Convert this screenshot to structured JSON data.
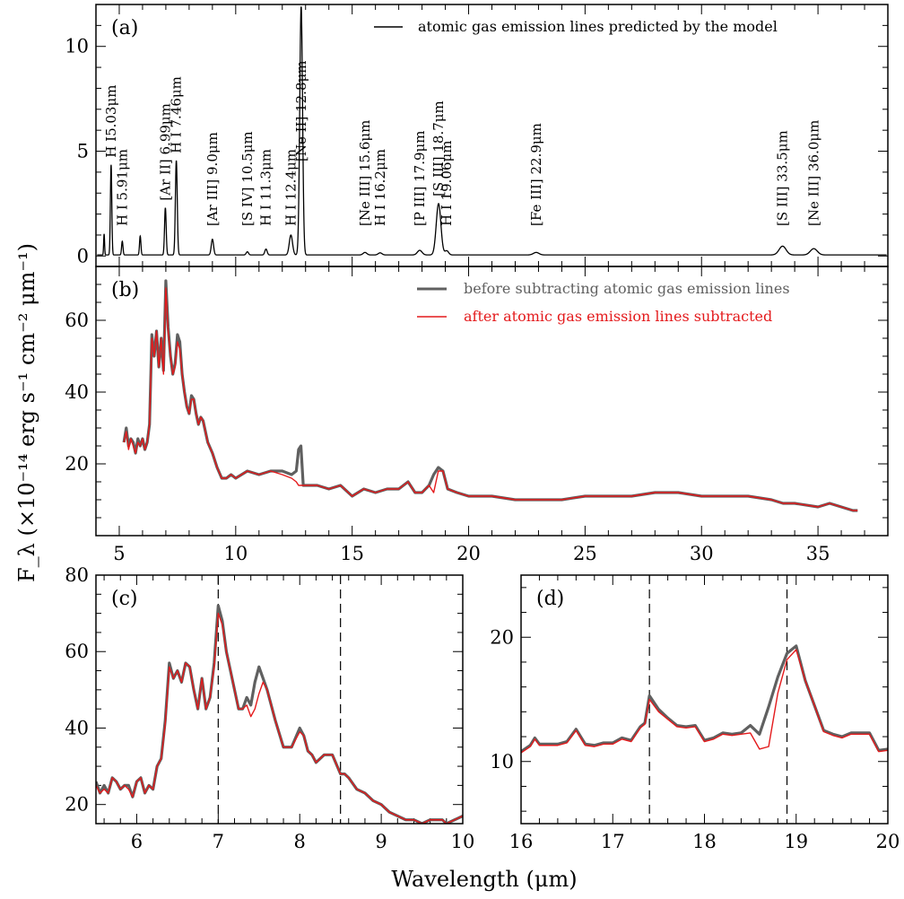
{
  "figure": {
    "ylabel": "F_λ (×10⁻¹⁴ erg s⁻¹ cm⁻² μm⁻¹)",
    "xlabel": "Wavelength (μm)"
  },
  "colors": {
    "before": "#606060",
    "after": "#e41a1c",
    "model": "#000000"
  },
  "chart_data": [
    {
      "id": "a",
      "panel_label": "(a)",
      "type": "line",
      "xlim": [
        4,
        38
      ],
      "ylim": [
        -0.5,
        12
      ],
      "x_ticks": [
        5,
        10,
        15,
        20,
        25,
        30,
        35
      ],
      "y_ticks": [
        0,
        5,
        10
      ],
      "legend": [
        {
          "label": "atomic gas emission lines predicted by the model",
          "color": "#000000"
        }
      ],
      "legend_position": "top-right",
      "baseline": 0.05,
      "lines": [
        {
          "x": 4.35,
          "h": 1.0,
          "w": 0.02
        },
        {
          "x": 4.65,
          "h": 4.3,
          "w": 0.03,
          "label": "H I5.03μm"
        },
        {
          "x": 5.13,
          "h": 0.65,
          "w": 0.03,
          "label": "H I 5.91μm"
        },
        {
          "x": 5.9,
          "h": 0.9,
          "w": 0.03
        },
        {
          "x": 6.98,
          "h": 2.25,
          "w": 0.035,
          "label": "[Ar II] 6.99μm"
        },
        {
          "x": 7.45,
          "h": 4.5,
          "w": 0.04,
          "label": "H I 7.46μm"
        },
        {
          "x": 9.0,
          "h": 0.75,
          "w": 0.05,
          "label": "[Ar III] 9.0μm"
        },
        {
          "x": 10.5,
          "h": 0.15,
          "w": 0.05,
          "label": "[S IV] 10.5μm"
        },
        {
          "x": 11.3,
          "h": 0.28,
          "w": 0.05,
          "label": "H I 11.3μm"
        },
        {
          "x": 12.37,
          "h": 0.95,
          "w": 0.07,
          "label": "H I 12.4μm"
        },
        {
          "x": 12.81,
          "h": 11.85,
          "w": 0.06,
          "label": "[Ne II] 12.8μm"
        },
        {
          "x": 15.55,
          "h": 0.12,
          "w": 0.08,
          "label": "[Ne III] 15.6μm"
        },
        {
          "x": 16.2,
          "h": 0.1,
          "w": 0.08,
          "label": "H I 16.2μm"
        },
        {
          "x": 17.9,
          "h": 0.22,
          "w": 0.1,
          "label": "[P III] 17.9μm"
        },
        {
          "x": 18.71,
          "h": 2.45,
          "w": 0.1,
          "label": "[S III] 18.7μm"
        },
        {
          "x": 19.06,
          "h": 0.2,
          "w": 0.08,
          "label": "H I 19.06μm"
        },
        {
          "x": 22.9,
          "h": 0.12,
          "w": 0.12,
          "label": "[Fe III] 22.9μm"
        },
        {
          "x": 33.48,
          "h": 0.42,
          "w": 0.15,
          "label": "[S III] 33.5μm"
        },
        {
          "x": 34.82,
          "h": 0.3,
          "w": 0.15,
          "label": "[Ne III] 36.0μm"
        }
      ]
    },
    {
      "id": "b",
      "panel_label": "(b)",
      "type": "line",
      "xlim": [
        4,
        38
      ],
      "ylim": [
        0,
        75
      ],
      "x_ticks": [
        5,
        10,
        15,
        20,
        25,
        30,
        35
      ],
      "y_ticks": [
        20,
        40,
        60
      ],
      "legend": [
        {
          "label": "before subtracting atomic gas emission lines",
          "color": "#606060"
        },
        {
          "label": "after atomic gas emission lines subtracted",
          "color": "#e41a1c"
        }
      ],
      "legend_position": "top-right",
      "series": [
        {
          "name": "before subtracting atomic gas emission lines",
          "x": [
            5.2,
            5.3,
            5.4,
            5.5,
            5.6,
            5.7,
            5.8,
            5.9,
            6.0,
            6.1,
            6.2,
            6.3,
            6.4,
            6.5,
            6.6,
            6.7,
            6.8,
            6.9,
            7.0,
            7.1,
            7.2,
            7.3,
            7.4,
            7.5,
            7.6,
            7.7,
            7.8,
            7.9,
            8.0,
            8.1,
            8.2,
            8.3,
            8.4,
            8.5,
            8.6,
            8.8,
            9.0,
            9.2,
            9.4,
            9.6,
            9.8,
            10.0,
            10.5,
            11.0,
            11.5,
            12.0,
            12.4,
            12.6,
            12.7,
            12.8,
            12.9,
            13.0,
            13.5,
            14.0,
            14.5,
            15.0,
            15.5,
            16.0,
            16.5,
            17.0,
            17.4,
            17.7,
            18.0,
            18.3,
            18.5,
            18.7,
            18.9,
            19.1,
            19.5,
            20.0,
            21,
            22,
            23,
            24,
            25,
            26,
            27,
            28,
            29,
            30,
            31,
            32,
            33,
            33.5,
            34,
            35,
            35.5,
            36,
            36.5,
            36.7
          ],
          "y": [
            26,
            30,
            25,
            27,
            26,
            23,
            27,
            25,
            27,
            24,
            26,
            31,
            56,
            50,
            57,
            47,
            55,
            46,
            71,
            58,
            50,
            45,
            48,
            56,
            54,
            45,
            40,
            36,
            34,
            39,
            38,
            34,
            31,
            33,
            32,
            26,
            23,
            19,
            16,
            16,
            17,
            16,
            18,
            17,
            18,
            18,
            17,
            18,
            24,
            25,
            14,
            14,
            14,
            13,
            14,
            11,
            13,
            12,
            13,
            13,
            15,
            12,
            12,
            14,
            17,
            19,
            18,
            13,
            12,
            11,
            11,
            10,
            10,
            10,
            11,
            11,
            11,
            12,
            12,
            11,
            11,
            11,
            10,
            9,
            9,
            8,
            9,
            8,
            7,
            7
          ]
        },
        {
          "name": "after atomic gas emission lines subtracted",
          "x": [
            5.2,
            5.3,
            5.4,
            5.5,
            5.6,
            5.7,
            5.8,
            5.9,
            6.0,
            6.1,
            6.2,
            6.3,
            6.4,
            6.5,
            6.6,
            6.7,
            6.8,
            6.9,
            7.0,
            7.1,
            7.2,
            7.3,
            7.4,
            7.5,
            7.6,
            7.7,
            7.8,
            7.9,
            8.0,
            8.1,
            8.2,
            8.3,
            8.4,
            8.5,
            8.6,
            8.8,
            9.0,
            9.2,
            9.4,
            9.6,
            9.8,
            10.0,
            10.5,
            11.0,
            11.5,
            12.0,
            12.4,
            12.6,
            12.7,
            12.8,
            12.9,
            13.0,
            13.5,
            14.0,
            14.5,
            15.0,
            15.5,
            16.0,
            16.5,
            17.0,
            17.4,
            17.7,
            18.0,
            18.3,
            18.5,
            18.7,
            18.9,
            19.1,
            19.5,
            20.0,
            21,
            22,
            23,
            24,
            25,
            26,
            27,
            28,
            29,
            30,
            31,
            32,
            33,
            33.5,
            34,
            35,
            35.5,
            36,
            36.5,
            36.7
          ],
          "y": [
            26,
            29,
            24,
            27,
            25,
            23,
            26,
            25,
            27,
            24,
            26,
            31,
            55,
            50,
            57,
            47,
            55,
            45,
            69,
            57,
            50,
            45,
            47,
            54,
            52,
            45,
            40,
            36,
            34,
            38,
            38,
            34,
            31,
            33,
            32,
            26,
            23,
            19,
            16,
            16,
            17,
            16,
            18,
            17,
            18,
            17,
            16,
            15,
            14,
            14,
            14,
            14,
            14,
            13,
            14,
            11,
            13,
            12,
            13,
            13,
            15,
            12,
            12,
            14,
            12,
            18,
            18,
            13,
            12,
            11,
            11,
            10,
            10,
            10,
            11,
            11,
            11,
            12,
            12,
            11,
            11,
            11,
            10,
            9,
            9,
            8,
            9,
            8,
            7,
            7
          ]
        }
      ]
    },
    {
      "id": "c",
      "panel_label": "(c)",
      "type": "line",
      "xlim": [
        5.5,
        10
      ],
      "ylim": [
        15,
        80
      ],
      "x_ticks": [
        6,
        7,
        8,
        9,
        10
      ],
      "y_ticks": [
        20,
        40,
        60,
        80
      ],
      "vlines": [
        7.0,
        8.5
      ],
      "series": [
        {
          "name": "before subtracting atomic gas emission lines",
          "x": [
            5.5,
            5.55,
            5.6,
            5.65,
            5.7,
            5.75,
            5.8,
            5.85,
            5.9,
            5.95,
            6.0,
            6.05,
            6.1,
            6.15,
            6.2,
            6.25,
            6.3,
            6.35,
            6.4,
            6.45,
            6.5,
            6.55,
            6.6,
            6.65,
            6.7,
            6.75,
            6.8,
            6.85,
            6.9,
            6.95,
            7.0,
            7.05,
            7.1,
            7.15,
            7.2,
            7.25,
            7.3,
            7.35,
            7.4,
            7.45,
            7.5,
            7.55,
            7.6,
            7.7,
            7.8,
            7.9,
            8.0,
            8.05,
            8.1,
            8.15,
            8.2,
            8.3,
            8.4,
            8.5,
            8.55,
            8.6,
            8.7,
            8.8,
            8.9,
            9.0,
            9.1,
            9.2,
            9.3,
            9.4,
            9.5,
            9.6,
            9.7,
            9.75,
            9.8,
            9.9,
            10.0
          ],
          "y": [
            26,
            23,
            25,
            23,
            27,
            26,
            24,
            25,
            25,
            22,
            26,
            27,
            23,
            25,
            24,
            30,
            32,
            42,
            57,
            53,
            55,
            52,
            57,
            56,
            50,
            45,
            53,
            45,
            48,
            57,
            72,
            68,
            60,
            55,
            50,
            45,
            45,
            48,
            46,
            52,
            56,
            53,
            50,
            42,
            35,
            35,
            40,
            38,
            34,
            33,
            31,
            33,
            33,
            28,
            28,
            27,
            24,
            23,
            21,
            20,
            18,
            17,
            16,
            16,
            15,
            16,
            16,
            16,
            15,
            16,
            17
          ]
        },
        {
          "name": "after atomic gas emission lines subtracted",
          "x": [
            5.5,
            5.55,
            5.6,
            5.65,
            5.7,
            5.75,
            5.8,
            5.85,
            5.9,
            5.95,
            6.0,
            6.05,
            6.1,
            6.15,
            6.2,
            6.25,
            6.3,
            6.35,
            6.4,
            6.45,
            6.5,
            6.55,
            6.6,
            6.65,
            6.7,
            6.75,
            6.8,
            6.85,
            6.9,
            6.95,
            7.0,
            7.05,
            7.1,
            7.15,
            7.2,
            7.25,
            7.3,
            7.35,
            7.4,
            7.45,
            7.5,
            7.55,
            7.6,
            7.7,
            7.8,
            7.9,
            8.0,
            8.05,
            8.1,
            8.15,
            8.2,
            8.3,
            8.4,
            8.5,
            8.55,
            8.6,
            8.7,
            8.8,
            8.9,
            9.0,
            9.1,
            9.2,
            9.3,
            9.4,
            9.5,
            9.6,
            9.7,
            9.75,
            9.8,
            9.9,
            10.0
          ],
          "y": [
            25,
            23,
            24,
            23,
            27,
            26,
            24,
            25,
            24,
            22,
            26,
            27,
            23,
            25,
            24,
            30,
            32,
            41,
            56,
            53,
            55,
            52,
            57,
            56,
            50,
            45,
            53,
            45,
            48,
            56,
            70,
            67,
            60,
            55,
            50,
            45,
            45,
            46,
            43,
            45,
            49,
            52,
            50,
            42,
            35,
            35,
            39,
            38,
            34,
            33,
            31,
            33,
            33,
            28,
            28,
            27,
            24,
            23,
            21,
            20,
            18,
            17,
            16,
            16,
            15,
            16,
            16,
            16,
            15,
            16,
            17
          ]
        }
      ]
    },
    {
      "id": "d",
      "panel_label": "(d)",
      "type": "line",
      "xlim": [
        16,
        20
      ],
      "ylim": [
        5,
        25
      ],
      "x_ticks": [
        16,
        17,
        18,
        19,
        20
      ],
      "y_ticks": [
        10,
        20
      ],
      "vlines": [
        17.4,
        18.9
      ],
      "series": [
        {
          "name": "before subtracting atomic gas emission lines",
          "x": [
            16.0,
            16.1,
            16.15,
            16.2,
            16.3,
            16.4,
            16.5,
            16.6,
            16.7,
            16.8,
            16.9,
            17.0,
            17.1,
            17.2,
            17.3,
            17.35,
            17.4,
            17.5,
            17.6,
            17.7,
            17.8,
            17.9,
            18.0,
            18.1,
            18.2,
            18.3,
            18.4,
            18.5,
            18.6,
            18.7,
            18.8,
            18.9,
            19.0,
            19.1,
            19.2,
            19.3,
            19.4,
            19.5,
            19.6,
            19.7,
            19.8,
            19.9,
            20.0
          ],
          "y": [
            10.8,
            11.3,
            11.9,
            11.4,
            11.4,
            11.4,
            11.6,
            12.6,
            11.4,
            11.3,
            11.5,
            11.5,
            11.9,
            11.7,
            12.8,
            13.1,
            15.3,
            14.2,
            13.5,
            12.9,
            12.8,
            12.9,
            11.7,
            11.9,
            12.3,
            12.2,
            12.3,
            12.9,
            12.2,
            14.4,
            16.8,
            18.7,
            19.3,
            16.5,
            14.5,
            12.5,
            12.2,
            12.0,
            12.3,
            12.3,
            12.3,
            10.9,
            11.0
          ]
        },
        {
          "name": "after atomic gas emission lines subtracted",
          "x": [
            16.0,
            16.1,
            16.15,
            16.2,
            16.3,
            16.4,
            16.5,
            16.6,
            16.7,
            16.8,
            16.9,
            17.0,
            17.1,
            17.2,
            17.3,
            17.35,
            17.4,
            17.5,
            17.6,
            17.7,
            17.8,
            17.9,
            18.0,
            18.1,
            18.2,
            18.3,
            18.4,
            18.5,
            18.6,
            18.7,
            18.8,
            18.9,
            19.0,
            19.1,
            19.2,
            19.3,
            19.4,
            19.5,
            19.6,
            19.7,
            19.8,
            19.9,
            20.0
          ],
          "y": [
            10.7,
            11.2,
            11.8,
            11.3,
            11.3,
            11.3,
            11.5,
            12.5,
            11.3,
            11.2,
            11.4,
            11.4,
            11.8,
            11.6,
            12.7,
            13.0,
            15.0,
            14.0,
            13.4,
            12.8,
            12.7,
            12.8,
            11.6,
            11.8,
            12.2,
            12.1,
            12.2,
            12.3,
            11.0,
            11.2,
            15.5,
            18.2,
            19.0,
            16.5,
            14.5,
            12.4,
            12.1,
            11.9,
            12.2,
            12.2,
            12.2,
            10.8,
            10.9
          ]
        }
      ]
    }
  ]
}
